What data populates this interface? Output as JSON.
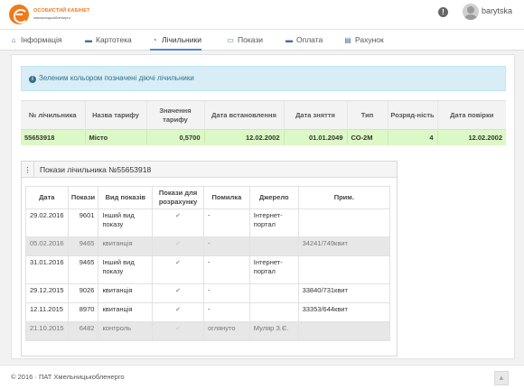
{
  "header": {
    "logo_line1": "ОСОБИСТИЙ КАБІНЕТ",
    "logo_line2": "хмельницькобленерго",
    "username": "barytska",
    "help_icon": "!"
  },
  "nav": {
    "tabs": [
      {
        "label": "Інформація",
        "icon": "home-icon"
      },
      {
        "label": "Картотека",
        "icon": "card-icon"
      },
      {
        "label": "Лічильники",
        "icon": "gauge-icon",
        "active": true
      },
      {
        "label": "Покази",
        "icon": "list-icon"
      },
      {
        "label": "Оплата",
        "icon": "card-icon"
      },
      {
        "label": "Рахунок",
        "icon": "file-icon"
      }
    ]
  },
  "alert": {
    "text": "Зеленим кольором позначені діючі лічильники"
  },
  "meters": {
    "headers": [
      "№ лічильника",
      "Назва тарифу",
      "Значення тарифу",
      "Дата встановлення",
      "Дата зняття",
      "Тип",
      "Розряд-ність",
      "Дата повірки"
    ],
    "rows": [
      [
        "55653918",
        "Місто",
        "0,5700",
        "12.02.2002",
        "01.01.2049",
        "СО-2М",
        "4",
        "12.02.2002"
      ]
    ]
  },
  "panel": {
    "title": "Покази лічильника №55653918"
  },
  "readings": {
    "headers": [
      "Дата",
      "Покази",
      "Вид показів",
      "Покази для розрахунку",
      "Помилка",
      "Джерело",
      "Прим."
    ],
    "rows": [
      {
        "date": "29.02.2016",
        "value": "9601",
        "kind": "Інший вид показу",
        "calc": true,
        "error": "-",
        "source": "Інтернет-портал",
        "note": "",
        "grey": false
      },
      {
        "date": "05.02.2016",
        "value": "9465",
        "kind": "квитанція",
        "calc": false,
        "error": "-",
        "source": "",
        "note": "34241/749квит",
        "grey": true
      },
      {
        "date": "31.01.2016",
        "value": "9465",
        "kind": "Інший вид показу",
        "calc": true,
        "error": "-",
        "source": "Інтернет-портал",
        "note": "",
        "grey": false
      },
      {
        "date": "29.12.2015",
        "value": "9026",
        "kind": "квитанція",
        "calc": true,
        "error": "-",
        "source": "",
        "note": "33840/731квит",
        "grey": false
      },
      {
        "date": "12.11.2015",
        "value": "8970",
        "kind": "квитанція",
        "calc": true,
        "error": "-",
        "source": "",
        "note": "33353/644квит",
        "grey": false
      },
      {
        "date": "21.10.2015",
        "value": "6482",
        "kind": "контроль",
        "calc": false,
        "error": "оглянуто",
        "source": "Муляр З.Є.",
        "note": "",
        "grey": true
      }
    ]
  },
  "footer": {
    "text": "© 2016 · ПАТ Хмельницькобленерго"
  },
  "colors": {
    "brand": "#f07a1a",
    "active_row": "#dcf8c6",
    "alert_bg": "#d9edf7"
  }
}
